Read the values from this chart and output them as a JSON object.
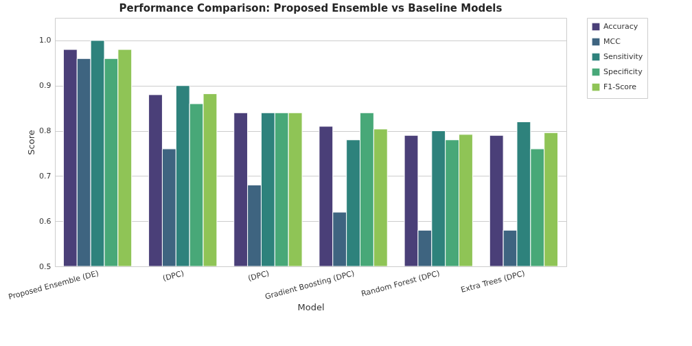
{
  "chart_data": {
    "type": "bar",
    "title": "Performance Comparison: Proposed Ensemble vs Baseline Models",
    "xlabel": "Model",
    "ylabel": "Score",
    "categories": [
      "Proposed Ensemble (DE)",
      "(DPC)",
      "(DPC)",
      "Gradient Boosting (DPC)",
      "Random Forest (DPC)",
      "Extra Trees (DPC)"
    ],
    "series": [
      {
        "name": "Accuracy",
        "color": "#4a3f78",
        "values": [
          0.98,
          0.88,
          0.84,
          0.81,
          0.79,
          0.79
        ]
      },
      {
        "name": "MCC",
        "color": "#3e6480",
        "values": [
          0.96,
          0.76,
          0.68,
          0.62,
          0.58,
          0.58
        ]
      },
      {
        "name": "Sensitivity",
        "color": "#2e827c",
        "values": [
          1.0,
          0.9,
          0.84,
          0.78,
          0.8,
          0.82
        ]
      },
      {
        "name": "Specificity",
        "color": "#48a878",
        "values": [
          0.96,
          0.86,
          0.84,
          0.84,
          0.78,
          0.76
        ]
      },
      {
        "name": "F1-Score",
        "color": "#8fc456",
        "values": [
          0.98,
          0.882,
          0.84,
          0.804,
          0.792,
          0.796
        ]
      }
    ],
    "ylim": [
      0.5,
      1.05
    ],
    "yticks": [
      0.5,
      0.6,
      0.7,
      0.8,
      0.9,
      {
        "value": 1,
        "label": "1.0"
      }
    ],
    "grid": "y",
    "legend": "top right"
  }
}
